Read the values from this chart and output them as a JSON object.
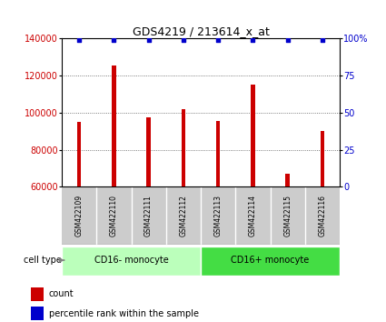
{
  "title": "GDS4219 / 213614_x_at",
  "samples": [
    "GSM422109",
    "GSM422110",
    "GSM422111",
    "GSM422112",
    "GSM422113",
    "GSM422114",
    "GSM422115",
    "GSM422116"
  ],
  "counts": [
    95000,
    125500,
    97500,
    102000,
    95500,
    115000,
    67000,
    90000
  ],
  "percentile_ranks": [
    99,
    99,
    99,
    99,
    99,
    99,
    99,
    99
  ],
  "groups": [
    {
      "label": "CD16- monocyte",
      "color": "#bbffbb",
      "span": [
        0,
        4
      ]
    },
    {
      "label": "CD16+ monocyte",
      "color": "#44dd44",
      "span": [
        4,
        8
      ]
    }
  ],
  "bar_color": "#cc0000",
  "dot_color": "#0000cc",
  "ylim_left": [
    60000,
    140000
  ],
  "ylim_right": [
    0,
    100
  ],
  "yticks_left": [
    60000,
    80000,
    100000,
    120000,
    140000
  ],
  "yticks_right": [
    0,
    25,
    50,
    75,
    100
  ],
  "ylabel_left_color": "#cc0000",
  "ylabel_right_color": "#0000cc",
  "grid_color": "#555555",
  "bar_width": 0.12,
  "sample_box_color": "#cccccc",
  "legend_count_label": "count",
  "legend_percentile_label": "percentile rank within the sample",
  "cell_type_label": "cell type"
}
